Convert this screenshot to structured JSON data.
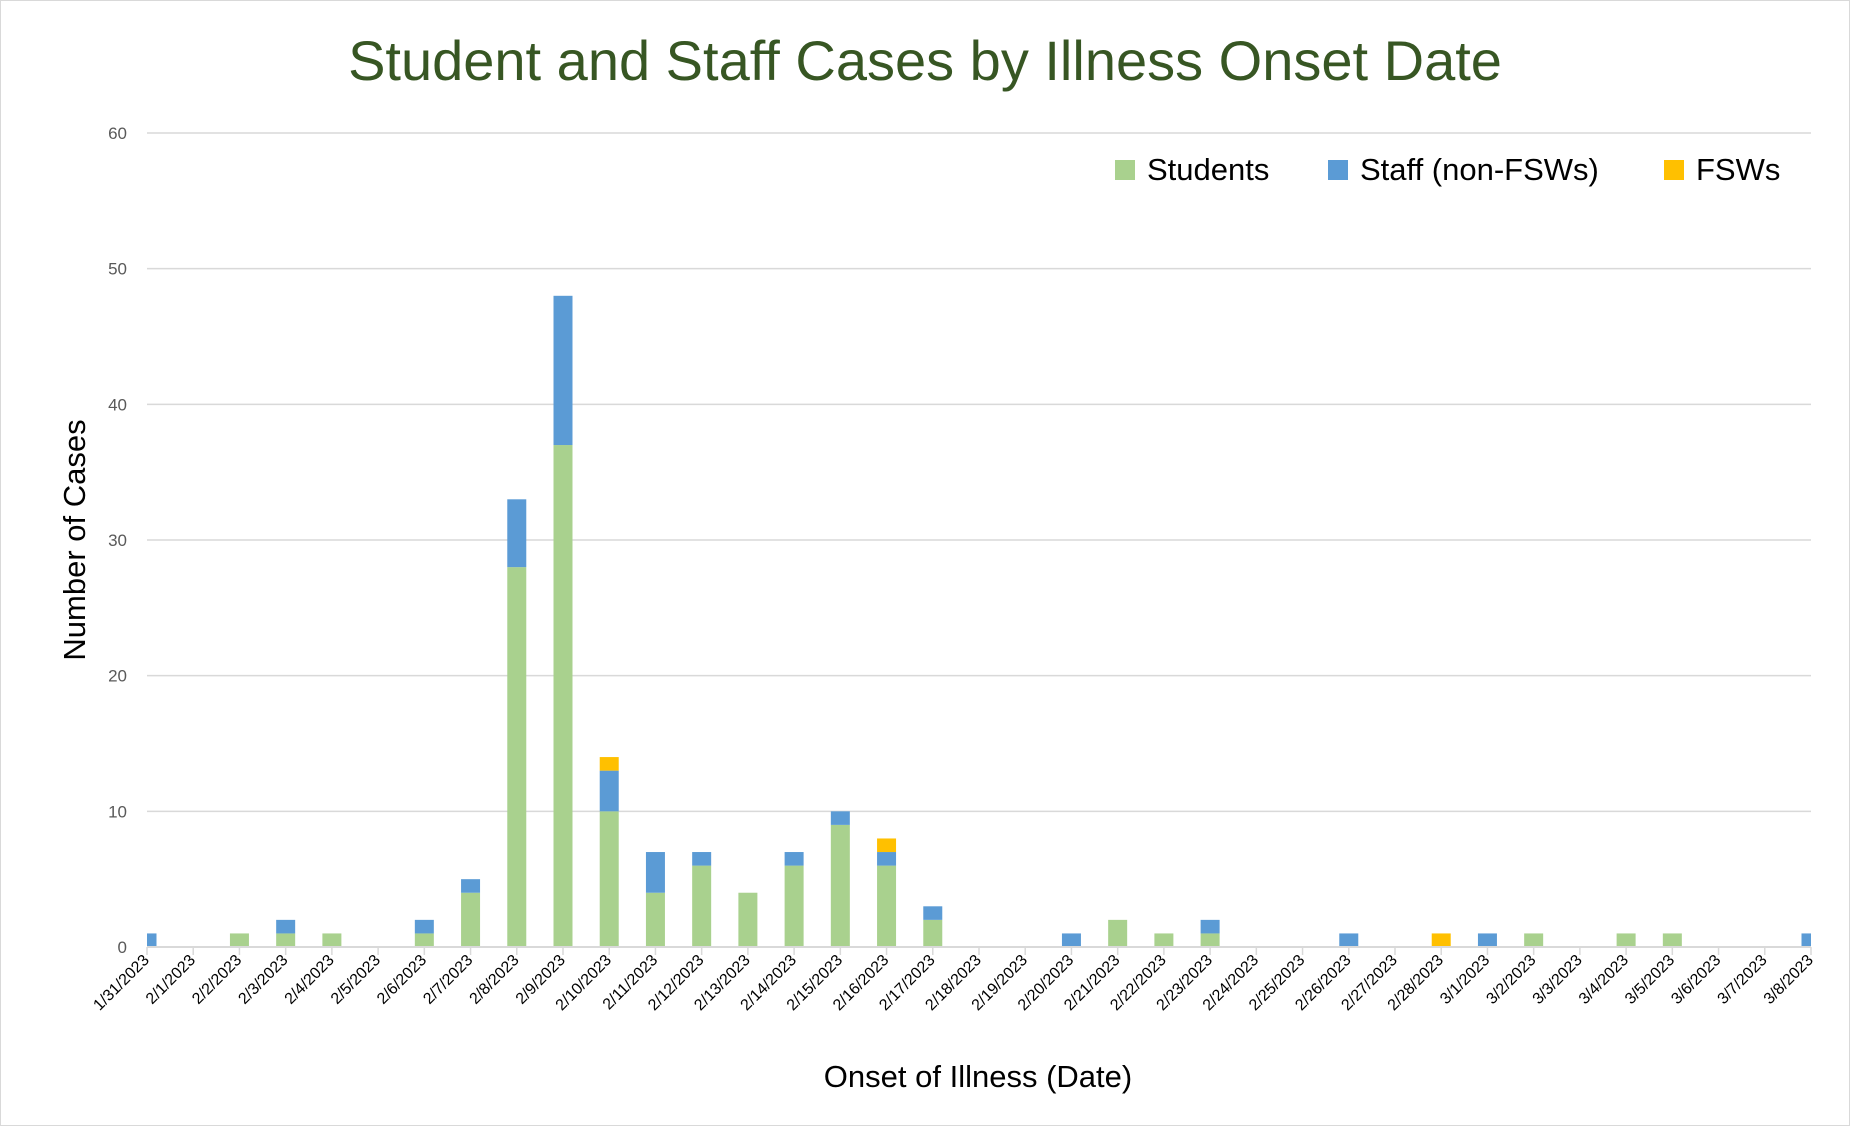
{
  "chart_data": {
    "type": "bar",
    "stacked": true,
    "title": "Student and Staff Cases by Illness Onset Date",
    "xlabel": "Onset of Illness (Date)",
    "ylabel": "Number of Cases",
    "ylim": [
      0,
      60
    ],
    "yticks": [
      0,
      10,
      20,
      30,
      40,
      50,
      60
    ],
    "grid": true,
    "legend_position": "top-right",
    "categories": [
      "1/31/2023",
      "2/1/2023",
      "2/2/2023",
      "2/3/2023",
      "2/4/2023",
      "2/5/2023",
      "2/6/2023",
      "2/7/2023",
      "2/8/2023",
      "2/9/2023",
      "2/10/2023",
      "2/11/2023",
      "2/12/2023",
      "2/13/2023",
      "2/14/2023",
      "2/15/2023",
      "2/16/2023",
      "2/17/2023",
      "2/18/2023",
      "2/19/2023",
      "2/20/2023",
      "2/21/2023",
      "2/22/2023",
      "2/23/2023",
      "2/24/2023",
      "2/25/2023",
      "2/26/2023",
      "2/27/2023",
      "2/28/2023",
      "3/1/2023",
      "3/2/2023",
      "3/3/2023",
      "3/4/2023",
      "3/5/2023",
      "3/6/2023",
      "3/7/2023",
      "3/8/2023"
    ],
    "series": [
      {
        "name": "Students",
        "color": "#a9d18e",
        "values": [
          0,
          0,
          1,
          1,
          1,
          0,
          1,
          4,
          28,
          37,
          10,
          4,
          6,
          4,
          6,
          9,
          6,
          2,
          0,
          0,
          0,
          2,
          1,
          1,
          0,
          0,
          0,
          0,
          0,
          0,
          1,
          0,
          1,
          1,
          0,
          0,
          0
        ]
      },
      {
        "name": "Staff (non-FSWs)",
        "color": "#5b9bd5",
        "values": [
          1,
          0,
          0,
          1,
          0,
          0,
          1,
          1,
          5,
          11,
          3,
          3,
          1,
          0,
          1,
          1,
          1,
          1,
          0,
          0,
          1,
          0,
          0,
          1,
          0,
          0,
          1,
          0,
          0,
          1,
          0,
          0,
          0,
          0,
          0,
          0,
          1
        ]
      },
      {
        "name": "FSWs",
        "color": "#ffc000",
        "values": [
          0,
          0,
          0,
          0,
          0,
          0,
          0,
          0,
          0,
          0,
          1,
          0,
          0,
          0,
          0,
          0,
          1,
          0,
          0,
          0,
          0,
          0,
          0,
          0,
          0,
          0,
          0,
          0,
          1,
          0,
          0,
          0,
          0,
          0,
          0,
          0,
          0
        ]
      }
    ],
    "title_color": "#375623"
  }
}
